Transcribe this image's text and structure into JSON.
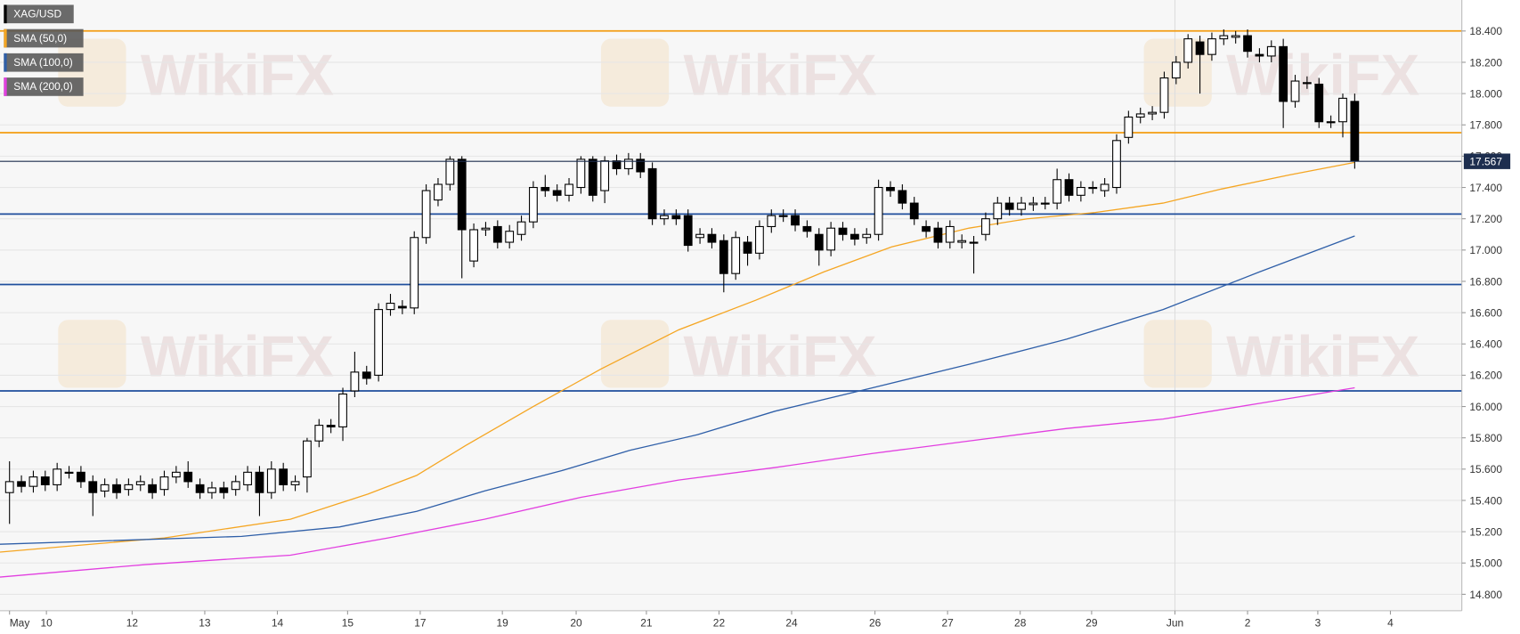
{
  "watermark": "WikiFX",
  "chart_data": {
    "type": "candlestick",
    "symbol": "XAG/USD",
    "x": [
      0,
      1,
      2,
      3,
      4,
      5,
      6,
      7,
      8,
      9,
      10,
      11,
      12,
      13,
      14,
      15,
      16,
      17,
      18,
      19,
      20,
      21,
      22,
      23,
      24,
      25,
      26,
      27,
      28,
      29,
      30,
      31,
      32,
      33,
      34,
      35,
      36,
      37,
      38,
      39,
      40,
      41,
      42,
      43,
      44,
      45,
      46,
      47,
      48,
      49,
      50,
      51,
      52,
      53,
      54,
      55,
      56,
      57,
      58,
      59,
      60,
      61,
      62,
      63,
      64,
      65,
      66,
      67,
      68,
      69,
      70,
      71,
      72,
      73,
      74,
      75,
      76,
      77,
      78,
      79,
      80,
      81,
      82,
      83,
      84,
      85,
      86,
      87,
      88,
      89,
      90,
      91,
      92,
      93,
      94,
      95,
      96,
      97,
      98,
      99,
      100,
      101,
      102,
      103,
      104,
      105,
      106,
      107,
      108,
      109,
      110,
      111,
      112,
      113
    ],
    "open": [
      15.45,
      15.52,
      15.49,
      15.55,
      15.5,
      15.58,
      15.58,
      15.52,
      15.46,
      15.5,
      15.47,
      15.5,
      15.5,
      15.47,
      15.55,
      15.58,
      15.5,
      15.45,
      15.48,
      15.47,
      15.5,
      15.58,
      15.45,
      15.6,
      15.5,
      15.55,
      15.78,
      15.88,
      15.87,
      16.1,
      16.22,
      16.2,
      16.62,
      16.64,
      16.63,
      17.08,
      17.32,
      17.42,
      17.58,
      16.93,
      17.13,
      17.15,
      17.05,
      17.1,
      17.18,
      17.4,
      17.38,
      17.35,
      17.4,
      17.58,
      17.38,
      17.57,
      17.52,
      17.58,
      17.52,
      17.2,
      17.22,
      17.22,
      17.08,
      17.1,
      17.06,
      16.85,
      17.05,
      16.98,
      17.15,
      17.22,
      17.22,
      17.15,
      17.1,
      17.0,
      17.14,
      17.1,
      17.08,
      17.1,
      17.4,
      17.38,
      17.3,
      17.15,
      17.14,
      17.05,
      17.05,
      17.05,
      17.1,
      17.2,
      17.3,
      17.26,
      17.29,
      17.3,
      17.3,
      17.45,
      17.35,
      17.4,
      17.38,
      17.4,
      17.72,
      17.85,
      17.87,
      17.88,
      18.1,
      18.2,
      18.33,
      18.25,
      18.35,
      18.36,
      18.37,
      18.25,
      18.24,
      18.3,
      17.95,
      18.07,
      18.06,
      17.82,
      17.82,
      17.95
    ],
    "high": [
      15.65,
      15.56,
      15.59,
      15.59,
      15.64,
      15.62,
      15.62,
      15.56,
      15.54,
      15.54,
      15.54,
      15.56,
      15.54,
      15.59,
      15.62,
      15.65,
      15.54,
      15.52,
      15.52,
      15.56,
      15.62,
      15.62,
      15.65,
      15.64,
      15.56,
      15.8,
      15.92,
      15.92,
      16.12,
      16.35,
      16.26,
      16.66,
      16.72,
      16.68,
      17.12,
      17.42,
      17.46,
      17.6,
      17.6,
      17.17,
      17.18,
      17.19,
      17.16,
      17.22,
      17.44,
      17.48,
      17.42,
      17.46,
      17.6,
      17.6,
      17.6,
      17.61,
      17.62,
      17.62,
      17.56,
      17.26,
      17.26,
      17.26,
      17.14,
      17.14,
      17.1,
      17.12,
      17.09,
      17.19,
      17.26,
      17.26,
      17.26,
      17.19,
      17.14,
      17.18,
      17.18,
      17.14,
      17.14,
      17.45,
      17.44,
      17.42,
      17.34,
      17.19,
      17.18,
      17.19,
      17.1,
      17.09,
      17.24,
      17.34,
      17.34,
      17.34,
      17.34,
      17.34,
      17.52,
      17.49,
      17.44,
      17.44,
      17.46,
      17.74,
      17.89,
      17.91,
      17.92,
      18.14,
      18.24,
      18.38,
      18.37,
      18.39,
      18.41,
      18.4,
      18.41,
      18.29,
      18.34,
      18.35,
      18.12,
      18.11,
      18.1,
      17.86,
      18.0,
      18.0
    ],
    "low": [
      15.25,
      15.45,
      15.45,
      15.46,
      15.46,
      15.54,
      15.48,
      15.3,
      15.42,
      15.41,
      15.43,
      15.46,
      15.41,
      15.43,
      15.51,
      15.48,
      15.41,
      15.41,
      15.41,
      15.43,
      15.46,
      15.3,
      15.41,
      15.46,
      15.46,
      15.45,
      15.74,
      15.83,
      15.78,
      16.06,
      16.14,
      16.16,
      16.58,
      16.59,
      16.59,
      17.04,
      17.28,
      17.38,
      16.82,
      16.89,
      17.09,
      17.01,
      17.01,
      17.06,
      17.14,
      17.34,
      17.31,
      17.31,
      17.36,
      17.31,
      17.3,
      17.48,
      17.48,
      17.46,
      17.16,
      17.16,
      17.16,
      16.99,
      17.04,
      17.01,
      16.73,
      16.81,
      16.9,
      16.94,
      17.11,
      17.18,
      17.12,
      17.08,
      16.9,
      16.96,
      17.06,
      17.03,
      17.04,
      17.06,
      17.34,
      17.26,
      17.16,
      17.08,
      17.01,
      17.01,
      17.01,
      16.85,
      17.06,
      17.16,
      17.22,
      17.22,
      17.25,
      17.26,
      17.26,
      17.31,
      17.31,
      17.36,
      17.34,
      17.36,
      17.68,
      17.81,
      17.83,
      17.84,
      18.06,
      18.16,
      18.0,
      18.21,
      18.31,
      18.32,
      18.23,
      18.2,
      18.2,
      17.78,
      17.91,
      18.03,
      17.78,
      17.78,
      17.72,
      17.52
    ],
    "close": [
      15.52,
      15.49,
      15.55,
      15.5,
      15.6,
      15.58,
      15.52,
      15.45,
      15.5,
      15.45,
      15.5,
      15.52,
      15.45,
      15.55,
      15.58,
      15.52,
      15.45,
      15.48,
      15.45,
      15.52,
      15.58,
      15.45,
      15.6,
      15.5,
      15.52,
      15.78,
      15.88,
      15.87,
      16.08,
      16.22,
      16.18,
      16.62,
      16.66,
      16.63,
      17.08,
      17.38,
      17.42,
      17.58,
      17.13,
      17.13,
      17.14,
      17.05,
      17.12,
      17.18,
      17.4,
      17.38,
      17.35,
      17.42,
      17.58,
      17.35,
      17.57,
      17.52,
      17.58,
      17.5,
      17.2,
      17.22,
      17.2,
      17.03,
      17.1,
      17.05,
      16.85,
      17.08,
      16.98,
      17.15,
      17.22,
      17.22,
      17.16,
      17.12,
      17.0,
      17.14,
      17.1,
      17.07,
      17.1,
      17.4,
      17.38,
      17.3,
      17.2,
      17.12,
      17.05,
      17.15,
      17.06,
      17.05,
      17.2,
      17.3,
      17.26,
      17.3,
      17.3,
      17.3,
      17.45,
      17.35,
      17.4,
      17.4,
      17.42,
      17.7,
      17.85,
      17.87,
      17.88,
      18.1,
      18.2,
      18.35,
      18.25,
      18.35,
      18.37,
      18.37,
      18.27,
      18.24,
      18.3,
      17.95,
      18.08,
      18.07,
      17.82,
      17.82,
      17.97,
      17.57
    ],
    "lines": [
      {
        "name": "SMA (50,0)",
        "color": "#f5a623",
        "x": [
          -0.8,
          13,
          23.6,
          30.1,
          34.2,
          38.3,
          44,
          49.7,
          56.2,
          62.7,
          68.4,
          74.1,
          80.6,
          85.5,
          91.2,
          96.9,
          101.8,
          107.5,
          113
        ],
        "values": [
          15.07,
          15.16,
          15.28,
          15.44,
          15.56,
          15.75,
          16.0,
          16.24,
          16.49,
          16.68,
          16.86,
          17.02,
          17.14,
          17.2,
          17.24,
          17.3,
          17.39,
          17.48,
          17.56
        ]
      },
      {
        "name": "SMA (100,0)",
        "color": "#2f5fa8",
        "x": [
          -0.8,
          19.5,
          27.7,
          34.2,
          39.9,
          46.4,
          52.1,
          57.8,
          64.3,
          72.5,
          80.6,
          88.8,
          96.9,
          105,
          113
        ],
        "values": [
          15.12,
          15.17,
          15.23,
          15.33,
          15.46,
          15.59,
          15.72,
          15.82,
          15.97,
          16.12,
          16.27,
          16.43,
          16.62,
          16.86,
          17.09
        ]
      },
      {
        "name": "SMA (200,0)",
        "color": "#e23fe0",
        "x": [
          -0.8,
          11.4,
          23.6,
          31.8,
          39.9,
          48,
          56.2,
          64.3,
          72.5,
          80.6,
          88.8,
          96.9,
          105,
          113
        ],
        "values": [
          14.91,
          14.99,
          15.05,
          15.16,
          15.28,
          15.42,
          15.53,
          15.61,
          15.7,
          15.78,
          15.86,
          15.92,
          16.02,
          16.12
        ]
      }
    ],
    "hlines": [
      {
        "value": 18.4,
        "color": "#f39c12"
      },
      {
        "value": 17.75,
        "color": "#f39c12"
      },
      {
        "value": 17.23,
        "color": "#1f4e9c"
      },
      {
        "value": 16.78,
        "color": "#1f4e9c"
      },
      {
        "value": 16.1,
        "color": "#1f4e9c"
      }
    ],
    "last_price": 17.567,
    "ylim": [
      14.695,
      18.598
    ],
    "yticks": [
      {
        "value": 14.8,
        "label": "14.800"
      },
      {
        "value": 15.0,
        "label": "15.000"
      },
      {
        "value": 15.2,
        "label": "15.200"
      },
      {
        "value": 15.4,
        "label": "15.400"
      },
      {
        "value": 15.6,
        "label": "15.600"
      },
      {
        "value": 15.8,
        "label": "15.800"
      },
      {
        "value": 16.0,
        "label": "16.000"
      },
      {
        "value": 16.2,
        "label": "16.200"
      },
      {
        "value": 16.4,
        "label": "16.400"
      },
      {
        "value": 16.6,
        "label": "16.600"
      },
      {
        "value": 16.8,
        "label": "16.800"
      },
      {
        "value": 17.0,
        "label": "17.000"
      },
      {
        "value": 17.2,
        "label": "17.200"
      },
      {
        "value": 17.4,
        "label": "17.400"
      },
      {
        "value": 17.6,
        "label": "17.600"
      },
      {
        "value": 17.8,
        "label": "17.800"
      },
      {
        "value": 18.0,
        "label": "18.000"
      },
      {
        "value": 18.2,
        "label": "18.200"
      },
      {
        "value": 18.4,
        "label": "18.400"
      }
    ],
    "xlim": [
      -0.8,
      122
    ],
    "xticks": [
      {
        "value": 0,
        "label": "May"
      },
      {
        "value": 3.1,
        "label": "10"
      },
      {
        "value": 10.3,
        "label": "12"
      },
      {
        "value": 16.4,
        "label": "13"
      },
      {
        "value": 22.5,
        "label": "14"
      },
      {
        "value": 28.4,
        "label": "15"
      },
      {
        "value": 34.5,
        "label": "17"
      },
      {
        "value": 41.4,
        "label": "19"
      },
      {
        "value": 47.6,
        "label": "20"
      },
      {
        "value": 53.5,
        "label": "21"
      },
      {
        "value": 59.6,
        "label": "22"
      },
      {
        "value": 65.7,
        "label": "24"
      },
      {
        "value": 72.7,
        "label": "26"
      },
      {
        "value": 78.8,
        "label": "27"
      },
      {
        "value": 84.9,
        "label": "28"
      },
      {
        "value": 90.9,
        "label": "29"
      },
      {
        "value": 97.9,
        "label": "Jun"
      },
      {
        "value": 104,
        "label": "2"
      },
      {
        "value": 109.9,
        "label": "3"
      },
      {
        "value": 116,
        "label": "4"
      }
    ],
    "grid": true
  }
}
